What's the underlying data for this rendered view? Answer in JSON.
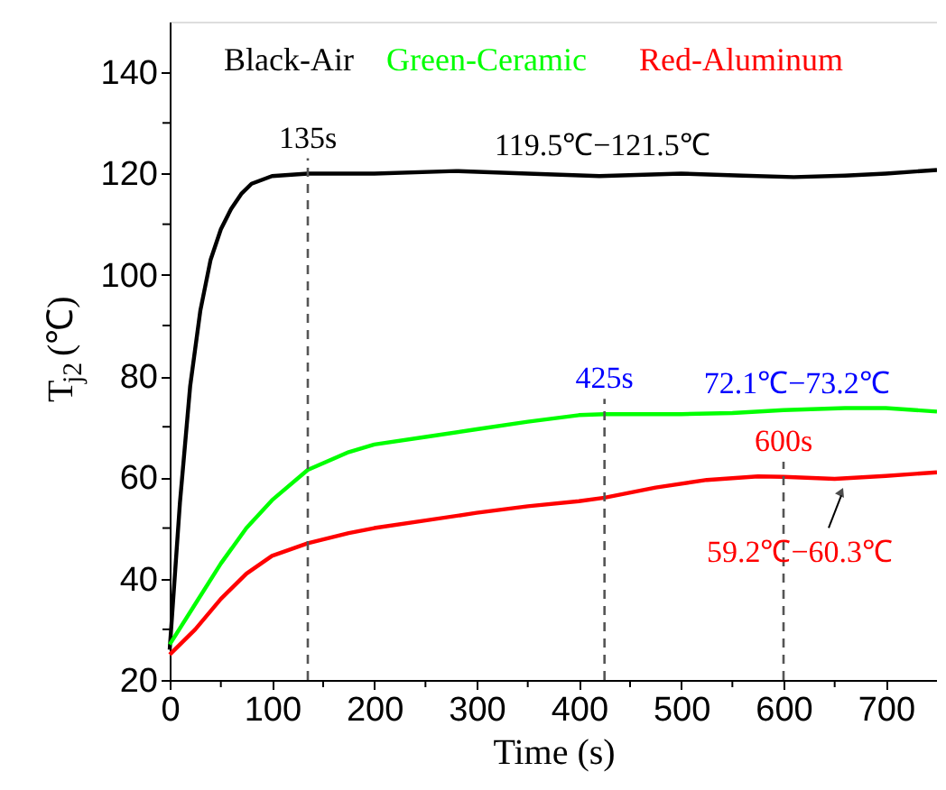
{
  "chart_data": {
    "type": "line",
    "xlabel": "Time (s)",
    "ylabel": "T$_{j2}$(℃)",
    "x": [
      0,
      10,
      20,
      30,
      40,
      50,
      60,
      70,
      80,
      100,
      135,
      200,
      280,
      350,
      420,
      500,
      560,
      610,
      660,
      700,
      750
    ],
    "series": [
      {
        "name": "Black-Air",
        "color": "#000000",
        "values": [
          26,
          55,
          78,
          93,
          103,
          109,
          113,
          116,
          118,
          119.5,
          120,
          120,
          120.5,
          120,
          119.5,
          120,
          119.6,
          119.3,
          119.6,
          120,
          120.7
        ]
      },
      {
        "name": "Green-Ceramic",
        "color": "#00ff00",
        "x": [
          0,
          25,
          50,
          75,
          100,
          135,
          175,
          200,
          250,
          300,
          350,
          400,
          425,
          500,
          550,
          600,
          660,
          700,
          750
        ],
        "values": [
          27,
          35,
          43,
          50,
          55.5,
          61.5,
          65,
          66.5,
          68,
          69.5,
          71,
          72.3,
          72.5,
          72.5,
          72.7,
          73.3,
          73.7,
          73.7,
          73
        ]
      },
      {
        "name": "Red-Aluminum",
        "color": "#ff0000",
        "x": [
          0,
          25,
          50,
          75,
          100,
          135,
          175,
          200,
          250,
          300,
          350,
          400,
          425,
          475,
          525,
          575,
          600,
          650,
          700,
          750
        ],
        "values": [
          25,
          30,
          36,
          41,
          44.5,
          47,
          49,
          50,
          51.5,
          53,
          54.3,
          55.3,
          56,
          58,
          59.5,
          60.2,
          60.1,
          59.7,
          60.3,
          61
        ]
      }
    ],
    "xlim": [
      0,
      750
    ],
    "ylim": [
      20,
      150
    ],
    "xticks": [
      0,
      {
        "value": 50,
        "label": null
      },
      100,
      {
        "value": 150,
        "label": null
      },
      200,
      {
        "value": 250,
        "label": null
      },
      300,
      {
        "value": 350,
        "label": null
      },
      400,
      {
        "value": 450,
        "label": null
      },
      500,
      {
        "value": 550,
        "label": null
      },
      600,
      {
        "value": 650,
        "label": null
      },
      700
    ],
    "yticks": [
      20,
      {
        "value": 30,
        "label": null
      },
      40,
      {
        "value": 50,
        "label": null
      },
      60,
      {
        "value": 70,
        "label": null
      },
      80,
      {
        "value": 90,
        "label": null
      },
      100,
      {
        "value": 110,
        "label": null
      },
      120,
      {
        "value": 130,
        "label": null
      },
      140
    ],
    "ref_lines": [
      {
        "axis": "x",
        "value": 135,
        "label": "135s",
        "color": "#555555",
        "line_style": "dashed"
      },
      {
        "axis": "x",
        "value": 425,
        "label": "425s",
        "color": "#555555",
        "line_style": "dashed"
      },
      {
        "axis": "x",
        "value": 600,
        "label": "600s",
        "color": "#555555",
        "line_style": "dashed"
      }
    ],
    "annotations": [
      {
        "text": "119.5℃−121.5℃",
        "x": 423,
        "y": 120
      },
      {
        "text": "72.1℃−73.2℃",
        "x": 613,
        "y": 73
      },
      {
        "text": "59.2℃−60.3℃",
        "x": 660,
        "y": 60
      }
    ],
    "legend": "top",
    "grid": false,
    "marker": "none",
    "line_style": "solid"
  }
}
